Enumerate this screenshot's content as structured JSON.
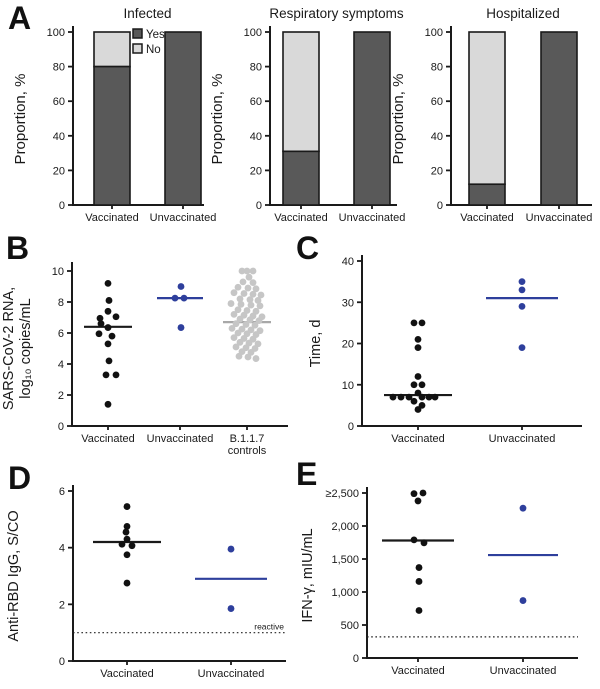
{
  "panels": [
    {
      "label": "A"
    },
    {
      "label": "B"
    },
    {
      "label": "C"
    },
    {
      "label": "D"
    },
    {
      "label": "E"
    }
  ],
  "colors": {
    "axis": "#1a1a1a",
    "black_point": "#111111",
    "blue": "#2e3f9c",
    "gray_point": "#c6c6c6",
    "gray_line": "#a8a8a8",
    "bar_yes": "#595959",
    "bar_no": "#d9d9d9"
  },
  "chart_data": [
    {
      "panel": "A",
      "type": "stacked-bar-group",
      "ylabel": "Proportion, %",
      "ylim": [
        0,
        100
      ],
      "yticks": [
        0,
        20,
        40,
        60,
        80,
        100
      ],
      "categories": [
        "Vaccinated",
        "Unvaccinated"
      ],
      "legend": [
        {
          "label": "Yes",
          "color": "#595959"
        },
        {
          "label": "No",
          "color": "#d9d9d9"
        }
      ],
      "charts": [
        {
          "title": "Infected",
          "series": [
            {
              "name": "Yes",
              "values": [
                80,
                100
              ]
            },
            {
              "name": "No",
              "values": [
                20,
                0
              ]
            }
          ]
        },
        {
          "title": "Respiratory symptoms",
          "series": [
            {
              "name": "Yes",
              "values": [
                31,
                100
              ]
            },
            {
              "name": "No",
              "values": [
                69,
                0
              ]
            }
          ]
        },
        {
          "title": "Hospitalized",
          "series": [
            {
              "name": "Yes",
              "values": [
                12,
                100
              ]
            },
            {
              "name": "No",
              "values": [
                88,
                0
              ]
            }
          ]
        }
      ]
    },
    {
      "panel": "B",
      "type": "scatter",
      "ylabel_lines": [
        "SARS-CoV-2 RNA,",
        "log₁₀ copies/mL"
      ],
      "ylim": [
        0,
        10
      ],
      "yticks": [
        {
          "v": 0,
          "label": "0"
        },
        {
          "v": 2,
          "label": "2"
        },
        {
          "v": 4,
          "label": "4"
        },
        {
          "v": 6,
          "label": "6"
        },
        {
          "v": 8,
          "label": "8"
        },
        {
          "v": 10,
          "label": "10"
        }
      ],
      "groups": [
        {
          "label_lines": [
            "Vaccinated"
          ],
          "point_color": "#111111",
          "median": {
            "value": 6.4,
            "color": "#1a1a1a",
            "half_width": 24
          },
          "points": [
            [
              9.2,
              0
            ],
            [
              8.1,
              1
            ],
            [
              7.4,
              0
            ],
            [
              7.05,
              8
            ],
            [
              6.95,
              -8
            ],
            [
              6.6,
              -7
            ],
            [
              6.35,
              0
            ],
            [
              5.95,
              -9
            ],
            [
              5.8,
              4
            ],
            [
              5.3,
              0
            ],
            [
              4.2,
              1
            ],
            [
              3.3,
              -2
            ],
            [
              3.3,
              8
            ],
            [
              1.4,
              0
            ]
          ]
        },
        {
          "label_lines": [
            "Unvaccinated"
          ],
          "point_color": "#2e3f9c",
          "median": {
            "value": 8.25,
            "color": "#2e3f9c",
            "half_width": 23
          },
          "points": [
            [
              9.0,
              1
            ],
            [
              8.25,
              -5
            ],
            [
              8.25,
              4
            ],
            [
              6.35,
              1
            ]
          ]
        },
        {
          "label_lines": [
            "B.1.1.7",
            "controls"
          ],
          "point_color": "#c6c6c6",
          "median": {
            "value": 6.7,
            "color": "#a8a8a8",
            "half_width": 24
          },
          "points": [
            [
              10.4,
              0
            ],
            [
              10.15,
              -5
            ],
            [
              10.1,
              6
            ],
            [
              9.6,
              2
            ],
            [
              9.3,
              -4
            ],
            [
              9.25,
              6
            ],
            [
              8.95,
              -9
            ],
            [
              8.9,
              1
            ],
            [
              8.85,
              9
            ],
            [
              8.6,
              -13
            ],
            [
              8.55,
              -3
            ],
            [
              8.5,
              6
            ],
            [
              8.45,
              14
            ],
            [
              8.2,
              -7
            ],
            [
              8.15,
              3
            ],
            [
              8.1,
              11
            ],
            [
              7.9,
              -16
            ],
            [
              7.85,
              -6
            ],
            [
              7.8,
              4
            ],
            [
              7.75,
              13
            ],
            [
              7.5,
              -9
            ],
            [
              7.45,
              0
            ],
            [
              7.4,
              9
            ],
            [
              7.2,
              -13
            ],
            [
              7.15,
              -3
            ],
            [
              7.1,
              6
            ],
            [
              7.05,
              15
            ],
            [
              6.9,
              -7
            ],
            [
              6.85,
              3
            ],
            [
              6.8,
              12
            ],
            [
              6.6,
              -11
            ],
            [
              6.55,
              -1
            ],
            [
              6.5,
              8
            ],
            [
              6.3,
              -15
            ],
            [
              6.25,
              -5
            ],
            [
              6.2,
              4
            ],
            [
              6.15,
              13
            ],
            [
              6.0,
              -9
            ],
            [
              5.95,
              0
            ],
            [
              5.9,
              9
            ],
            [
              5.7,
              -13
            ],
            [
              5.65,
              -3
            ],
            [
              5.6,
              6
            ],
            [
              5.4,
              -7
            ],
            [
              5.35,
              2
            ],
            [
              5.3,
              11
            ],
            [
              5.1,
              -11
            ],
            [
              5.05,
              -1
            ],
            [
              5.0,
              8
            ],
            [
              4.8,
              -5
            ],
            [
              4.75,
              4
            ],
            [
              4.5,
              -8
            ],
            [
              4.45,
              1
            ],
            [
              4.35,
              9
            ]
          ]
        }
      ]
    },
    {
      "panel": "C",
      "type": "scatter",
      "ylabel_lines": [
        "Time, d"
      ],
      "ylim": [
        0,
        40
      ],
      "yticks": [
        {
          "v": 0,
          "label": "0"
        },
        {
          "v": 10,
          "label": "10"
        },
        {
          "v": 20,
          "label": "20"
        },
        {
          "v": 30,
          "label": "30"
        },
        {
          "v": 40,
          "label": "40"
        }
      ],
      "groups": [
        {
          "label_lines": [
            "Vaccinated"
          ],
          "point_color": "#111111",
          "median": {
            "value": 7.5,
            "color": "#1a1a1a",
            "half_width": 34
          },
          "points": [
            [
              25,
              -4
            ],
            [
              25,
              4
            ],
            [
              21,
              0
            ],
            [
              19,
              0
            ],
            [
              12,
              0
            ],
            [
              10,
              -4
            ],
            [
              10,
              4
            ],
            [
              8,
              0
            ],
            [
              7,
              -25
            ],
            [
              7,
              -17
            ],
            [
              7,
              -9
            ],
            [
              7,
              4
            ],
            [
              7,
              11
            ],
            [
              7,
              17
            ],
            [
              6,
              -4
            ],
            [
              5,
              4
            ],
            [
              4,
              0
            ]
          ]
        },
        {
          "label_lines": [
            "Unvaccinated"
          ],
          "point_color": "#2e3f9c",
          "median": {
            "value": 31,
            "color": "#2e3f9c",
            "half_width": 36
          },
          "points": [
            [
              35,
              0
            ],
            [
              33,
              0
            ],
            [
              29,
              0
            ],
            [
              19,
              0
            ]
          ]
        }
      ]
    },
    {
      "panel": "D",
      "type": "scatter",
      "ylabel_lines": [
        "Anti-RBD IgG, S/CO"
      ],
      "ylim": [
        0,
        6
      ],
      "yticks": [
        {
          "v": 0,
          "label": "0"
        },
        {
          "v": 2,
          "label": "2"
        },
        {
          "v": 4,
          "label": "4"
        },
        {
          "v": 6,
          "label": "6"
        }
      ],
      "threshold": {
        "value": 1,
        "label": "reactive"
      },
      "groups": [
        {
          "label_lines": [
            "Vaccinated"
          ],
          "point_color": "#111111",
          "median": {
            "value": 4.2,
            "color": "#1a1a1a",
            "half_width": 34
          },
          "points": [
            [
              5.45,
              0
            ],
            [
              4.75,
              0
            ],
            [
              4.55,
              -1
            ],
            [
              4.3,
              0
            ],
            [
              4.12,
              -5
            ],
            [
              4.07,
              5
            ],
            [
              3.75,
              0
            ],
            [
              2.75,
              0
            ]
          ]
        },
        {
          "label_lines": [
            "Unvaccinated"
          ],
          "point_color": "#2e3f9c",
          "median": {
            "value": 2.9,
            "color": "#2e3f9c",
            "half_width": 36
          },
          "points": [
            [
              3.95,
              0
            ],
            [
              1.85,
              0
            ]
          ]
        }
      ]
    },
    {
      "panel": "E",
      "type": "scatter",
      "ylabel_lines": [
        "IFN-γ, mIU/mL"
      ],
      "ylim": [
        0,
        2500
      ],
      "yticks": [
        {
          "v": 0,
          "label": "0"
        },
        {
          "v": 500,
          "label": "500"
        },
        {
          "v": 1000,
          "label": "1,000"
        },
        {
          "v": 1500,
          "label": "1,500"
        },
        {
          "v": 2000,
          "label": "2,000"
        },
        {
          "v": 2500,
          "label": "≥2,500"
        }
      ],
      "threshold": {
        "value": 320,
        "label": ""
      },
      "groups": [
        {
          "label_lines": [
            "Vaccinated"
          ],
          "point_color": "#111111",
          "median": {
            "value": 1780,
            "color": "#1a1a1a",
            "half_width": 36
          },
          "points": [
            [
              2490,
              -4
            ],
            [
              2500,
              5
            ],
            [
              2380,
              0
            ],
            [
              1790,
              -4
            ],
            [
              1745,
              6
            ],
            [
              1370,
              1
            ],
            [
              1160,
              1
            ],
            [
              720,
              1
            ]
          ]
        },
        {
          "label_lines": [
            "Unvaccinated"
          ],
          "point_color": "#2e3f9c",
          "median": {
            "value": 1560,
            "color": "#2e3f9c",
            "half_width": 35
          },
          "points": [
            [
              2270,
              0
            ],
            [
              870,
              0
            ]
          ]
        }
      ]
    }
  ]
}
